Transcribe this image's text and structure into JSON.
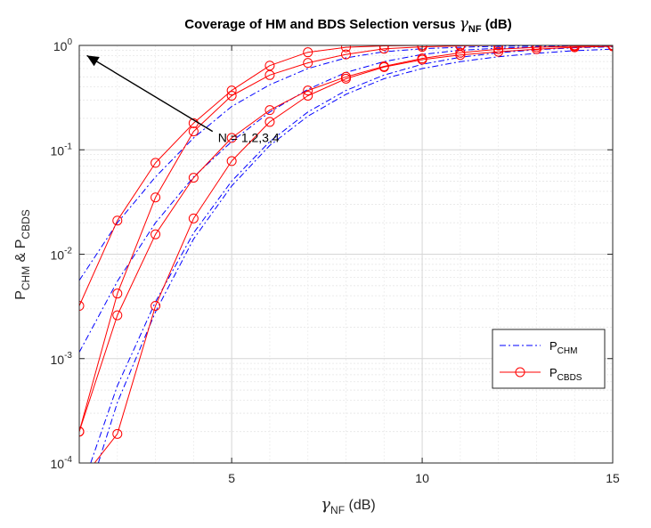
{
  "chart_data": {
    "type": "line",
    "title": {
      "main": "Coverage of HM and BDS Selection versus ",
      "sym": "γ",
      "sub": "NF",
      "unit": " (dB)"
    },
    "xlabel": {
      "sym": "γ",
      "sub": "NF",
      "unit": " (dB)"
    },
    "ylabel": {
      "p1": "P",
      "s1": "CHM",
      "mid": " & P",
      "s2": "CBDS"
    },
    "xlim": [
      1,
      15
    ],
    "ylim": [
      0.0001,
      1
    ],
    "yscale": "log",
    "grid": true,
    "minor_grid": true,
    "xticks": [
      {
        "value": 5,
        "label": "5"
      },
      {
        "value": 10,
        "label": "10"
      },
      {
        "value": 15,
        "label": "15"
      }
    ],
    "yticks": [
      {
        "value": 0.0001,
        "base": "10",
        "exp": "-4"
      },
      {
        "value": 0.001,
        "base": "10",
        "exp": "-3"
      },
      {
        "value": 0.01,
        "base": "10",
        "exp": "-2"
      },
      {
        "value": 0.1,
        "base": "10",
        "exp": "-1"
      },
      {
        "value": 1,
        "base": "10",
        "exp": "0"
      }
    ],
    "legend": {
      "position": "lower-right",
      "entries": [
        {
          "p": "P",
          "sub": "CHM",
          "style": "dashdot",
          "color": "#0000ff"
        },
        {
          "p": "P",
          "sub": "CBDS",
          "style": "solid-circle",
          "color": "#ff0000"
        }
      ]
    },
    "annotation": {
      "text": "N = 1,2,3,4",
      "arrow_from": [
        4.5,
        0.15
      ],
      "arrow_to": [
        1.2,
        0.8
      ]
    },
    "series": [
      {
        "group": "CHM",
        "N": 1,
        "color": "#0000ff",
        "x": [
          1,
          2,
          3,
          4,
          5,
          6,
          7,
          8,
          9,
          10,
          11,
          12,
          13,
          14,
          15
        ],
        "values": [
          0.0056,
          0.02,
          0.055,
          0.13,
          0.26,
          0.42,
          0.6,
          0.76,
          0.87,
          0.93,
          0.96,
          0.98,
          0.99,
          0.995,
          0.997
        ]
      },
      {
        "group": "CHM",
        "N": 2,
        "color": "#0000ff",
        "x": [
          1,
          2,
          3,
          4,
          5,
          6,
          7,
          8,
          9,
          10,
          11,
          12,
          13,
          14,
          15
        ],
        "values": [
          0.00115,
          0.0055,
          0.02,
          0.055,
          0.12,
          0.23,
          0.38,
          0.55,
          0.7,
          0.82,
          0.9,
          0.94,
          0.97,
          0.985,
          0.99
        ]
      },
      {
        "group": "CHM",
        "N": 3,
        "color": "#0000ff",
        "x": [
          1.3,
          2,
          3,
          4,
          5,
          6,
          7,
          8,
          9,
          10,
          11,
          12,
          13,
          14,
          15
        ],
        "values": [
          0.0001,
          0.00055,
          0.0035,
          0.016,
          0.05,
          0.12,
          0.23,
          0.37,
          0.52,
          0.66,
          0.77,
          0.85,
          0.91,
          0.95,
          0.97
        ]
      },
      {
        "group": "CHM",
        "N": 4,
        "color": "#0000ff",
        "x": [
          1.5,
          2,
          3,
          4,
          5,
          6,
          7,
          8,
          9,
          10,
          11,
          12,
          13,
          14,
          15
        ],
        "values": [
          0.0001,
          0.00038,
          0.0028,
          0.014,
          0.045,
          0.11,
          0.21,
          0.34,
          0.48,
          0.6,
          0.7,
          0.78,
          0.84,
          0.89,
          0.92
        ]
      },
      {
        "group": "CBDS",
        "N": 1,
        "color": "#ff0000",
        "x": [
          1,
          2,
          3,
          4,
          5,
          6,
          7,
          8,
          9,
          10,
          11,
          12,
          13,
          14,
          15
        ],
        "values": [
          0.0032,
          0.021,
          0.075,
          0.18,
          0.37,
          0.64,
          0.86,
          0.96,
          0.99,
          1,
          1,
          1,
          1,
          1,
          1
        ]
      },
      {
        "group": "CBDS",
        "N": 2,
        "color": "#ff0000",
        "x": [
          1,
          2,
          3,
          4,
          5,
          6,
          7,
          8,
          9,
          10,
          11,
          12,
          13,
          14,
          15
        ],
        "values": [
          0.0002,
          0.0042,
          0.035,
          0.15,
          0.33,
          0.52,
          0.68,
          0.82,
          0.93,
          0.97,
          0.99,
          1,
          1,
          1,
          1
        ]
      },
      {
        "group": "CBDS",
        "N": 3,
        "color": "#ff0000",
        "x": [
          1,
          2,
          3,
          4,
          5,
          6,
          7,
          8,
          9,
          10,
          11,
          12,
          13,
          14,
          15
        ],
        "values": [
          0.0002,
          0.0026,
          0.0155,
          0.054,
          0.13,
          0.24,
          0.37,
          0.5,
          0.63,
          0.75,
          0.85,
          0.92,
          0.96,
          0.98,
          1
        ]
      },
      {
        "group": "CBDS",
        "N": 4,
        "color": "#ff0000",
        "x": [
          1.4,
          2,
          3,
          4,
          5,
          6,
          7,
          8,
          9,
          10,
          11,
          12,
          13,
          14,
          15
        ],
        "values": [
          0.0001,
          0.00019,
          0.0032,
          0.022,
          0.078,
          0.185,
          0.33,
          0.48,
          0.62,
          0.73,
          0.81,
          0.87,
          0.92,
          0.96,
          0.98
        ]
      }
    ],
    "marker_x": [
      1,
      2,
      3,
      4,
      5,
      6,
      7,
      8,
      9,
      10,
      11,
      12,
      13,
      14,
      15
    ]
  }
}
